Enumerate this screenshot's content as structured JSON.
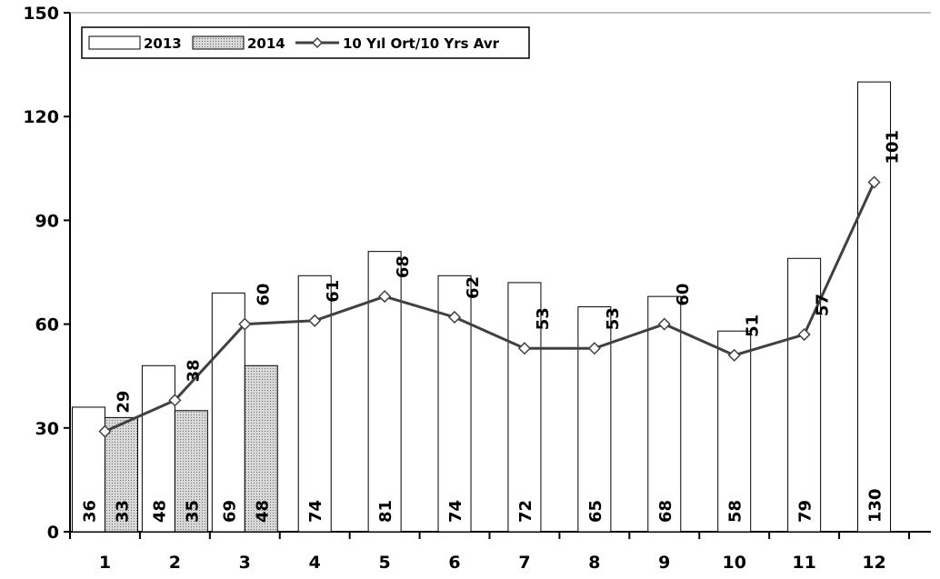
{
  "chart_data": {
    "type": "bar",
    "categories": [
      "1",
      "2",
      "3",
      "4",
      "5",
      "6",
      "7",
      "8",
      "9",
      "10",
      "11",
      "12"
    ],
    "ylim": [
      0,
      150
    ],
    "yticks": [
      0,
      30,
      60,
      90,
      120,
      150
    ],
    "series": [
      {
        "name": "2013",
        "kind": "bar",
        "values": [
          36,
          48,
          69,
          74,
          81,
          74,
          72,
          65,
          68,
          58,
          79,
          130
        ],
        "color": "#ffffff"
      },
      {
        "name": "2014",
        "kind": "bar",
        "values": [
          33,
          35,
          48,
          null,
          null,
          null,
          null,
          null,
          null,
          null,
          null,
          null
        ],
        "color": "#c8c8c8"
      },
      {
        "name": "10 Yıl Ort/10 Yrs Avr",
        "kind": "line",
        "values": [
          29,
          38,
          60,
          61,
          68,
          62,
          53,
          53,
          60,
          51,
          57,
          101
        ],
        "color": "#404040"
      }
    ],
    "legend": "top-left",
    "grid": false
  }
}
